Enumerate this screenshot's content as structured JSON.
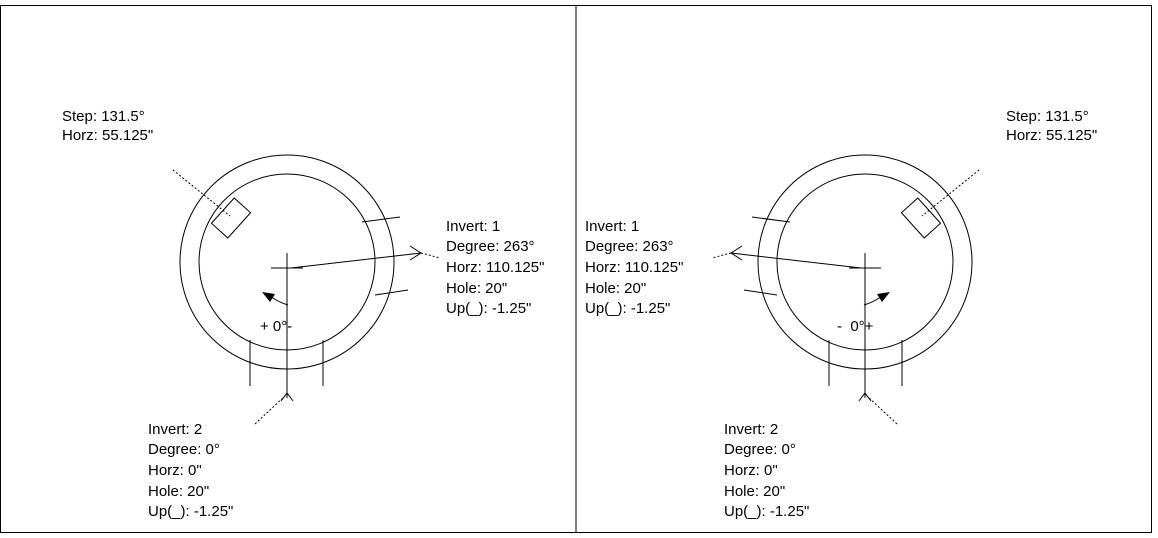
{
  "panels": [
    {
      "step": [
        "Step: 131.5°",
        "Horz: 55.125\""
      ],
      "invert_1": [
        "Invert: 1",
        "Degree: 263°",
        "Horz: 110.125\"",
        "Hole: 20\"",
        "Up(_): -1.25\""
      ],
      "invert_2": [
        "Invert: 2",
        "Degree: 0°",
        "Horz: 0\"",
        "Hole: 20\"",
        "Up(_): -1.25\""
      ],
      "rotation": "+ 0°-"
    },
    {
      "step": [
        "Step: 131.5°",
        "Horz: 55.125\""
      ],
      "invert_1": [
        "Invert: 1",
        "Degree: 263°",
        "Horz: 110.125\"",
        "Hole: 20\"",
        "Up(_): -1.25\""
      ],
      "invert_2": [
        "Invert: 2",
        "Degree: 0°",
        "Horz: 0\"",
        "Hole: 20\"",
        "Up(_): -1.25\""
      ],
      "rotation": "-  0°+"
    }
  ]
}
